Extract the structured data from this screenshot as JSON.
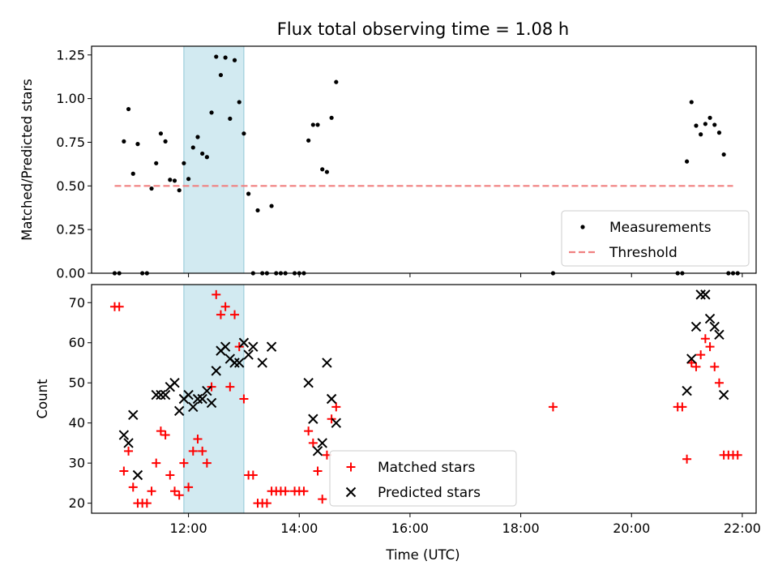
{
  "chart_data": [
    {
      "type": "scatter",
      "title": "Flux total observing time = 1.08 h",
      "xlabel": "",
      "ylabel": "Matched/Predicted stars",
      "xlim": [
        "10:15",
        "22:15"
      ],
      "ylim": [
        0,
        1.3
      ],
      "yticks": [
        "0.00",
        "0.25",
        "0.50",
        "0.75",
        "1.00",
        "1.25"
      ],
      "shaded_interval": [
        "11:55",
        "13:00"
      ],
      "shade_color": "#add8e6",
      "series": [
        {
          "name": "Measurements",
          "marker": "dot",
          "color": "#000000",
          "points": [
            [
              "10:40",
              0
            ],
            [
              "10:45",
              0
            ],
            [
              "10:50",
              0.755
            ],
            [
              "10:55",
              0.94
            ],
            [
              "11:00",
              0.57
            ],
            [
              "11:05",
              0.74
            ],
            [
              "11:10",
              0
            ],
            [
              "11:15",
              0
            ],
            [
              "11:20",
              0.485
            ],
            [
              "11:25",
              0.63
            ],
            [
              "11:30",
              0.8
            ],
            [
              "11:35",
              0.755
            ],
            [
              "11:40",
              0.535
            ],
            [
              "11:45",
              0.53
            ],
            [
              "11:50",
              0.475
            ],
            [
              "11:55",
              0.63
            ],
            [
              "12:00",
              0.54
            ],
            [
              "12:05",
              0.72
            ],
            [
              "12:10",
              0.78
            ],
            [
              "12:15",
              0.685
            ],
            [
              "12:20",
              0.665
            ],
            [
              "12:25",
              0.92
            ],
            [
              "12:30",
              1.24
            ],
            [
              "12:35",
              1.135
            ],
            [
              "12:40",
              1.235
            ],
            [
              "12:45",
              0.885
            ],
            [
              "12:50",
              1.22
            ],
            [
              "12:55",
              0.98
            ],
            [
              "13:00",
              0.8
            ],
            [
              "13:05",
              0.455
            ],
            [
              "13:10",
              0
            ],
            [
              "13:15",
              0.36
            ],
            [
              "13:20",
              0
            ],
            [
              "13:25",
              0
            ],
            [
              "13:30",
              0.385
            ],
            [
              "13:35",
              0
            ],
            [
              "13:40",
              0
            ],
            [
              "13:45",
              0
            ],
            [
              "13:55",
              0
            ],
            [
              "14:00",
              0
            ],
            [
              "14:05",
              0
            ],
            [
              "14:10",
              0.76
            ],
            [
              "14:15",
              0.85
            ],
            [
              "14:20",
              0.85
            ],
            [
              "14:25",
              0.595
            ],
            [
              "14:30",
              0.58
            ],
            [
              "14:35",
              0.89
            ],
            [
              "14:40",
              1.095
            ],
            [
              "18:35",
              0
            ],
            [
              "20:50",
              0
            ],
            [
              "20:55",
              0
            ],
            [
              "21:00",
              0.64
            ],
            [
              "21:05",
              0.98
            ],
            [
              "21:10",
              0.845
            ],
            [
              "21:15",
              0.795
            ],
            [
              "21:20",
              0.855
            ],
            [
              "21:25",
              0.89
            ],
            [
              "21:30",
              0.85
            ],
            [
              "21:35",
              0.805
            ],
            [
              "21:40",
              0.68
            ],
            [
              "21:45",
              0
            ],
            [
              "21:50",
              0
            ],
            [
              "21:55",
              0
            ]
          ]
        },
        {
          "name": "Threshold",
          "style": "dashed",
          "color": "#f08080",
          "x": [
            "10:40",
            "21:50"
          ],
          "y": [
            0.5,
            0.5
          ]
        }
      ],
      "legend": "lower right"
    },
    {
      "type": "scatter",
      "title": "",
      "xlabel": "Time (UTC)",
      "ylabel": "Count",
      "xlim": [
        "10:15",
        "22:15"
      ],
      "ylim": [
        17.5,
        74.5
      ],
      "xticks": [
        "12:00",
        "14:00",
        "16:00",
        "18:00",
        "20:00",
        "22:00"
      ],
      "yticks": [
        "20",
        "30",
        "40",
        "50",
        "60",
        "70"
      ],
      "shaded_interval": [
        "11:55",
        "13:00"
      ],
      "shade_color": "#add8e6",
      "series": [
        {
          "name": "Matched stars",
          "marker": "plus",
          "color": "#ff0000",
          "points": [
            [
              "10:40",
              69
            ],
            [
              "10:45",
              69
            ],
            [
              "10:50",
              28
            ],
            [
              "10:55",
              33
            ],
            [
              "11:00",
              24
            ],
            [
              "11:05",
              20
            ],
            [
              "11:10",
              20
            ],
            [
              "11:15",
              20
            ],
            [
              "11:20",
              23
            ],
            [
              "11:25",
              30
            ],
            [
              "11:30",
              38
            ],
            [
              "11:35",
              37
            ],
            [
              "11:40",
              27
            ],
            [
              "11:45",
              23
            ],
            [
              "11:50",
              22
            ],
            [
              "11:55",
              30
            ],
            [
              "12:00",
              24
            ],
            [
              "12:05",
              33
            ],
            [
              "12:10",
              36
            ],
            [
              "12:15",
              33
            ],
            [
              "12:20",
              30
            ],
            [
              "12:25",
              49
            ],
            [
              "12:30",
              72
            ],
            [
              "12:35",
              67
            ],
            [
              "12:40",
              69
            ],
            [
              "12:45",
              49
            ],
            [
              "12:50",
              67
            ],
            [
              "12:55",
              59
            ],
            [
              "13:00",
              46
            ],
            [
              "13:05",
              27
            ],
            [
              "13:10",
              27
            ],
            [
              "13:15",
              20
            ],
            [
              "13:20",
              20
            ],
            [
              "13:25",
              20
            ],
            [
              "13:30",
              23
            ],
            [
              "13:35",
              23
            ],
            [
              "13:40",
              23
            ],
            [
              "13:45",
              23
            ],
            [
              "13:55",
              23
            ],
            [
              "14:00",
              23
            ],
            [
              "14:05",
              23
            ],
            [
              "14:10",
              38
            ],
            [
              "14:15",
              35
            ],
            [
              "14:20",
              28
            ],
            [
              "14:25",
              21
            ],
            [
              "14:30",
              32
            ],
            [
              "14:35",
              41
            ],
            [
              "14:40",
              44
            ],
            [
              "18:35",
              44
            ],
            [
              "20:50",
              44
            ],
            [
              "20:55",
              44
            ],
            [
              "21:00",
              31
            ],
            [
              "21:05",
              55
            ],
            [
              "21:10",
              54
            ],
            [
              "21:15",
              57
            ],
            [
              "21:20",
              61
            ],
            [
              "21:25",
              59
            ],
            [
              "21:30",
              54
            ],
            [
              "21:35",
              50
            ],
            [
              "21:40",
              32
            ],
            [
              "21:45",
              32
            ],
            [
              "21:50",
              32
            ],
            [
              "21:55",
              32
            ]
          ]
        },
        {
          "name": "Predicted stars",
          "marker": "x",
          "color": "#000000",
          "points": [
            [
              "10:50",
              37
            ],
            [
              "10:55",
              35
            ],
            [
              "11:00",
              42
            ],
            [
              "11:05",
              27
            ],
            [
              "11:25",
              47
            ],
            [
              "11:30",
              47
            ],
            [
              "11:35",
              47
            ],
            [
              "11:40",
              49
            ],
            [
              "11:45",
              50
            ],
            [
              "11:50",
              43
            ],
            [
              "11:55",
              46
            ],
            [
              "12:00",
              47
            ],
            [
              "12:05",
              44
            ],
            [
              "12:10",
              46
            ],
            [
              "12:15",
              46
            ],
            [
              "12:20",
              48
            ],
            [
              "12:25",
              45
            ],
            [
              "12:30",
              53
            ],
            [
              "12:35",
              58
            ],
            [
              "12:40",
              59
            ],
            [
              "12:45",
              56
            ],
            [
              "12:50",
              55
            ],
            [
              "12:55",
              55
            ],
            [
              "13:00",
              60
            ],
            [
              "13:05",
              57
            ],
            [
              "13:10",
              59
            ],
            [
              "13:20",
              55
            ],
            [
              "13:30",
              59
            ],
            [
              "14:10",
              50
            ],
            [
              "14:15",
              41
            ],
            [
              "14:20",
              33
            ],
            [
              "14:25",
              35
            ],
            [
              "14:30",
              55
            ],
            [
              "14:35",
              46
            ],
            [
              "14:40",
              40
            ],
            [
              "21:00",
              48
            ],
            [
              "21:05",
              56
            ],
            [
              "21:10",
              64
            ],
            [
              "21:15",
              72
            ],
            [
              "21:20",
              72
            ],
            [
              "21:25",
              66
            ],
            [
              "21:30",
              64
            ],
            [
              "21:35",
              62
            ],
            [
              "21:40",
              47
            ]
          ]
        }
      ],
      "legend": "lower center"
    }
  ]
}
